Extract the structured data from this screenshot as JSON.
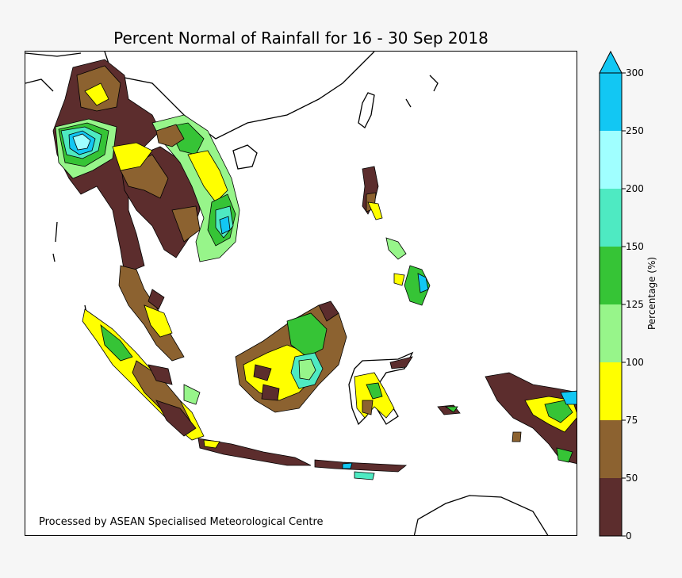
{
  "title": "Percent Normal of Rainfall for 16 - 30 Sep 2018",
  "credit": "Processed by ASEAN Specialised Meteorological Centre",
  "legend": {
    "title": "Percentage (%)",
    "ticks": [
      "0",
      "50",
      "75",
      "100",
      "125",
      "150",
      "200",
      "250",
      "300"
    ],
    "bins": [
      {
        "range": "0-50",
        "color": "#5c2d2d"
      },
      {
        "range": "50-75",
        "color": "#8c6230"
      },
      {
        "range": "75-100",
        "color": "#ffff00"
      },
      {
        "range": "100-125",
        "color": "#97f58a"
      },
      {
        "range": "125-150",
        "color": "#36c436"
      },
      {
        "range": "150-200",
        "color": "#4eeac2"
      },
      {
        "range": "200-250",
        "color": "#a0ffff"
      },
      {
        "range": "250-300",
        "color": "#12c7f3"
      }
    ],
    "extend": "max"
  }
}
